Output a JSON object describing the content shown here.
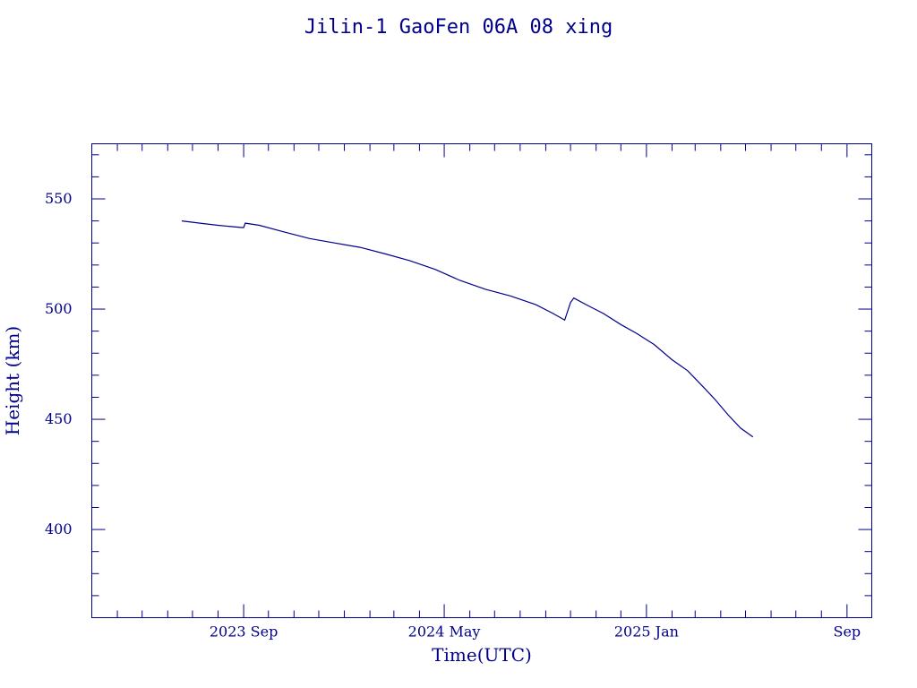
{
  "chart_data": {
    "type": "line",
    "title": "Jilin-1 GaoFen 06A 08 xing",
    "xlabel": "Time(UTC)",
    "ylabel": "Height (km)",
    "xlim": [
      "2023-03-01",
      "2025-10-01"
    ],
    "ylim": [
      360,
      575
    ],
    "x_ticks": [
      {
        "date": "2023-09-01",
        "label": "2023 Sep"
      },
      {
        "date": "2024-05-01",
        "label": "2024 May"
      },
      {
        "date": "2025-01-01",
        "label": "2025 Jan"
      },
      {
        "date": "2025-09-01",
        "label": "Sep"
      }
    ],
    "y_ticks": [
      400,
      450,
      500,
      550
    ],
    "grid": false,
    "colors": {
      "ink": "#00008b"
    },
    "series": [
      {
        "x": [
          "2023-06-18",
          "2023-07-10",
          "2023-08-01",
          "2023-08-30",
          "2023-09-01",
          "2023-09-03",
          "2023-09-20",
          "2023-10-20",
          "2023-11-20",
          "2023-12-20",
          "2024-01-20",
          "2024-02-20",
          "2024-03-20",
          "2024-04-20",
          "2024-05-20",
          "2024-06-20",
          "2024-07-20",
          "2024-08-20",
          "2024-09-10",
          "2024-09-24",
          "2024-10-01",
          "2024-10-05",
          "2024-10-20",
          "2024-11-10",
          "2024-12-01",
          "2024-12-20",
          "2025-01-10",
          "2025-02-01",
          "2025-02-20",
          "2025-03-10",
          "2025-03-25",
          "2025-04-10",
          "2025-04-25",
          "2025-05-10"
        ],
        "y": [
          540,
          539,
          538,
          537,
          537,
          539,
          538,
          535,
          532,
          530,
          528,
          525,
          522,
          518,
          513,
          509,
          506,
          502,
          498,
          495,
          503,
          505,
          502,
          498,
          493,
          489,
          484,
          477,
          472,
          465,
          459,
          452,
          446,
          442
        ]
      }
    ]
  }
}
